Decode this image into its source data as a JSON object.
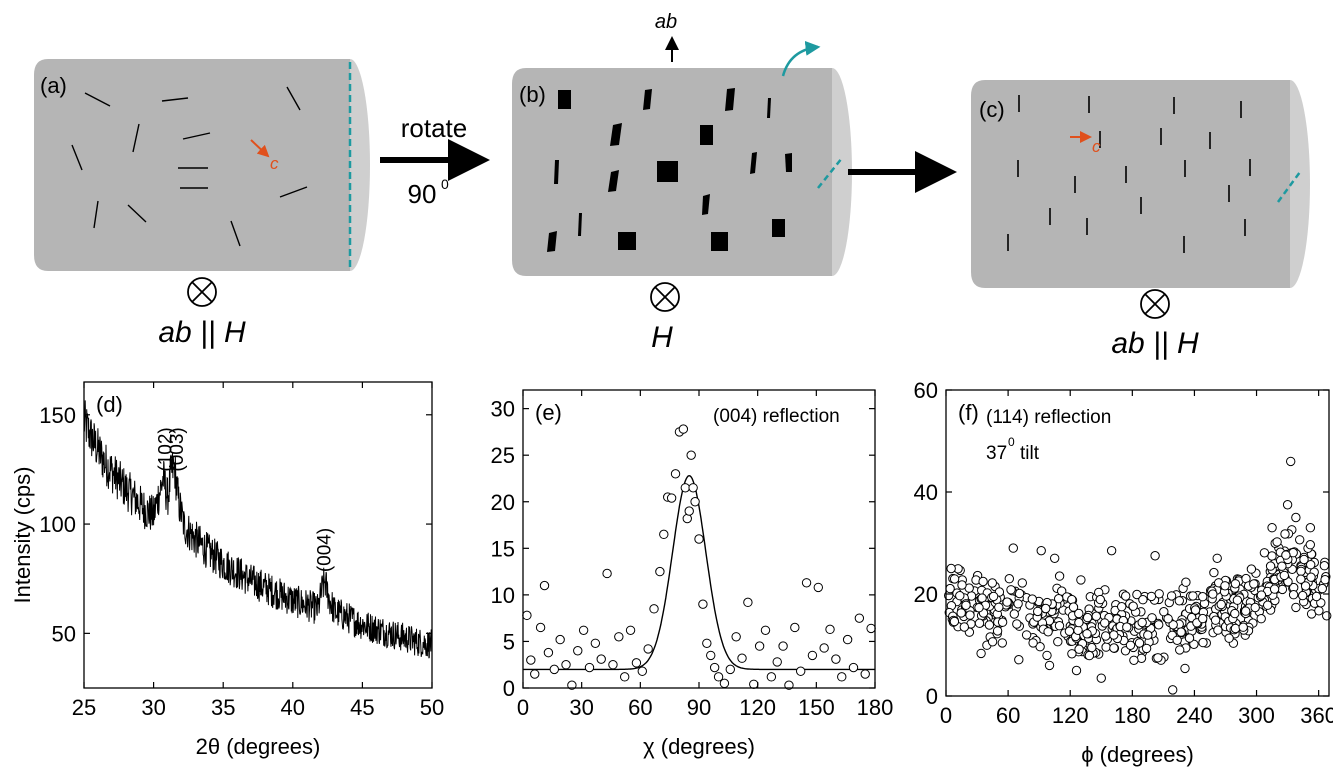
{
  "schematic": {
    "a": {
      "label": "(a)",
      "caption": "ab || H",
      "axis_label": "c"
    },
    "b": {
      "label": "(b)",
      "caption": "H",
      "axis_label": "ab"
    },
    "c": {
      "label": "(c)",
      "caption": "ab || H",
      "axis_label": "c"
    },
    "rotate_label": "rotate",
    "angle_label": "90",
    "angle_superscript": "0",
    "colors": {
      "cylinder": "#b5b5b5",
      "cylinder_end": "#cfcfcf",
      "teal": "#1e9aa0",
      "orange": "#e0501c"
    }
  },
  "chart_data": [
    {
      "panel": "(d)",
      "type": "line",
      "xlabel": "2θ (degrees)",
      "ylabel": "Intensity (cps)",
      "xlim": [
        25,
        50
      ],
      "ylim": [
        25,
        165
      ],
      "xticks": [
        25,
        30,
        35,
        40,
        45,
        50
      ],
      "yticks": [
        50,
        100,
        150
      ],
      "annotations": [
        {
          "text": "(102)",
          "x": 30.8,
          "y": 124
        },
        {
          "text": "(003)",
          "x": 31.6,
          "y": 124
        },
        {
          "text": "(004)",
          "x": 42.2,
          "y": 78
        }
      ],
      "series": [
        {
          "x": [
            25,
            25.5,
            26,
            26.5,
            27,
            27.5,
            28,
            28.5,
            29,
            29.5,
            30,
            30.4,
            30.7,
            31.0,
            31.3,
            31.5,
            31.8,
            32.2,
            33,
            34,
            35,
            36,
            37,
            38,
            39,
            40,
            41,
            41.8,
            42.1,
            42.3,
            42.6,
            43,
            44,
            45,
            46,
            47,
            48,
            49,
            50
          ],
          "y": [
            147,
            140,
            134,
            128,
            124,
            120,
            116,
            113,
            109,
            106,
            104,
            114,
            121,
            112,
            124,
            126,
            110,
            99,
            93,
            87,
            82,
            78,
            74,
            71,
            68,
            65,
            63,
            61,
            70,
            74,
            66,
            60,
            57,
            54,
            52,
            50,
            48,
            46,
            45
          ]
        }
      ]
    },
    {
      "panel": "(e)",
      "type": "scatter",
      "xlabel": "χ (degrees)",
      "ylim": [
        0,
        32
      ],
      "xlim": [
        0,
        180
      ],
      "xticks": [
        0,
        30,
        60,
        90,
        120,
        150,
        180
      ],
      "yticks": [
        0,
        5,
        10,
        15,
        20,
        25,
        30
      ],
      "annotation": "(004) reflection",
      "fit": {
        "baseline": 2,
        "amplitude": 20.8,
        "center": 85,
        "sigma": 8.5
      },
      "series": [
        {
          "x": [
            2,
            4,
            6,
            9,
            11,
            13,
            16,
            19,
            22,
            25,
            28,
            31,
            34,
            37,
            40,
            43,
            46,
            49,
            52,
            55,
            58,
            61,
            64,
            67,
            70,
            72,
            74,
            76,
            78,
            80,
            82,
            83,
            84,
            85,
            86,
            87,
            88,
            90,
            92,
            94,
            96,
            98,
            100,
            103,
            106,
            109,
            112,
            115,
            118,
            121,
            124,
            127,
            130,
            133,
            136,
            139,
            142,
            145,
            148,
            151,
            154,
            157,
            160,
            163,
            166,
            169,
            172,
            175,
            178
          ],
          "y": [
            7.8,
            3,
            1.5,
            6.5,
            11,
            3.8,
            2,
            5.2,
            2.5,
            0.3,
            4,
            6.2,
            2.2,
            4.8,
            3.1,
            12.3,
            2.5,
            5.5,
            1.2,
            6.2,
            2.7,
            1.8,
            4.2,
            8.5,
            12.5,
            16.5,
            20.5,
            20.4,
            23,
            27.5,
            27.8,
            21.5,
            18.2,
            19,
            25,
            21.5,
            20,
            16,
            9,
            4.8,
            3.5,
            2.2,
            1.2,
            0.5,
            2,
            5.5,
            3.2,
            9.2,
            0.4,
            4.5,
            6.2,
            1.2,
            2.8,
            4.5,
            0.3,
            6.5,
            1.8,
            11.3,
            3.5,
            10.8,
            4.3,
            6.3,
            3.1,
            1.2,
            5.2,
            2.2,
            7.5,
            1.5,
            6.4
          ]
        }
      ]
    },
    {
      "panel": "(f)",
      "type": "scatter",
      "xlabel": "ϕ (degrees)",
      "ylim": [
        0,
        60
      ],
      "xlim": [
        0,
        370
      ],
      "xticks": [
        0,
        60,
        120,
        180,
        240,
        300,
        360
      ],
      "yticks": [
        0,
        20,
        40,
        60
      ],
      "annotation": "(114) reflection",
      "annotation2": "37",
      "annotation2_superscript": "0",
      "annotation2_suffix": "tilt",
      "series": [
        {
          "trend": [
            [
              0,
              18
            ],
            [
              30,
              17.5
            ],
            [
              60,
              17
            ],
            [
              90,
              16
            ],
            [
              120,
              14
            ],
            [
              150,
              14.5
            ],
            [
              180,
              15
            ],
            [
              210,
              13.5
            ],
            [
              240,
              14
            ],
            [
              270,
              16
            ],
            [
              300,
              19
            ],
            [
              320,
              24
            ],
            [
              335,
              27
            ],
            [
              350,
              23
            ],
            [
              368,
              21
            ]
          ],
          "outliers": [
            [
              5,
              25
            ],
            [
              65,
              29
            ],
            [
              92,
              28.5
            ],
            [
              105,
              27
            ],
            [
              160,
              28.5
            ],
            [
              202,
              27.5
            ],
            [
              262,
              27
            ],
            [
              315,
              33
            ],
            [
              330,
              37.5
            ],
            [
              333,
              46
            ],
            [
              338,
              35
            ],
            [
              352,
              33
            ],
            [
              219,
              1.2
            ],
            [
              100,
              6
            ],
            [
              150,
              3.5
            ]
          ]
        }
      ]
    }
  ]
}
